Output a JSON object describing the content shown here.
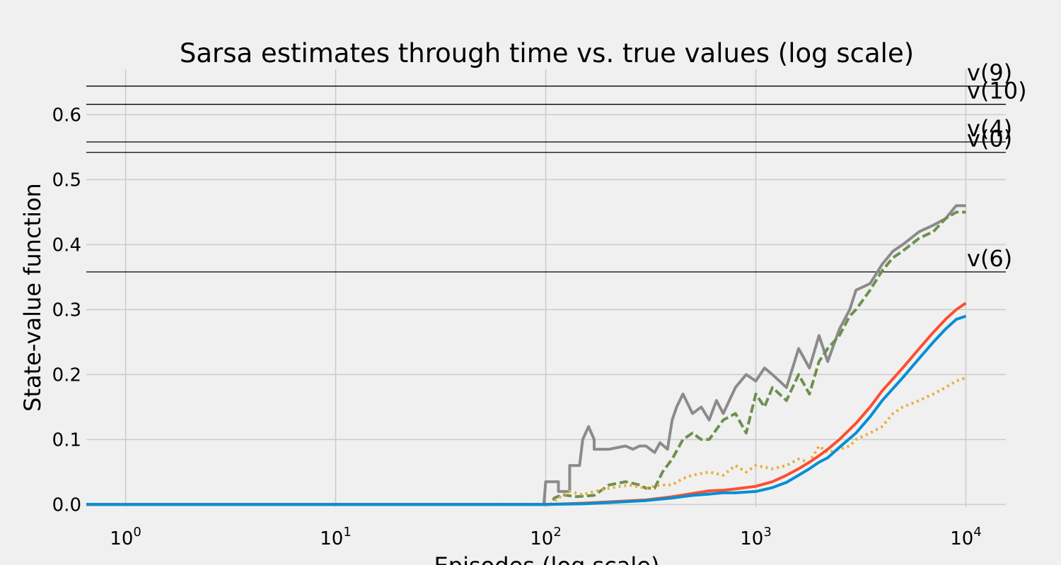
{
  "chart_data": {
    "type": "line",
    "title": "Sarsa estimates through time vs. true values (log scale)",
    "xlabel": "Episodes (log scale)",
    "ylabel": "State-value function",
    "xscale": "log",
    "xlim": [
      0.65,
      15500
    ],
    "ylim": [
      -0.004,
      0.67
    ],
    "grid": true,
    "legend": "none",
    "colors": [
      "#8b8b8b",
      "#6d904f",
      "#fc4f30",
      "#008fd5",
      "#e5ae38"
    ],
    "x_ticks": [
      {
        "value": 1,
        "base": "10",
        "exp": "0"
      },
      {
        "value": 10,
        "base": "10",
        "exp": "1"
      },
      {
        "value": 100,
        "base": "10",
        "exp": "2"
      },
      {
        "value": 1000,
        "base": "10",
        "exp": "3"
      },
      {
        "value": 10000,
        "base": "10",
        "exp": "4"
      }
    ],
    "y_ticks": [
      {
        "value": 0.0,
        "label": "0.0"
      },
      {
        "value": 0.1,
        "label": "0.1"
      },
      {
        "value": 0.2,
        "label": "0.2"
      },
      {
        "value": 0.3,
        "label": "0.3"
      },
      {
        "value": 0.4,
        "label": "0.4"
      },
      {
        "value": 0.5,
        "label": "0.5"
      },
      {
        "value": 0.6,
        "label": "0.6"
      }
    ],
    "true_values": [
      {
        "label": "v(9)",
        "value": 0.644
      },
      {
        "label": "v(10)",
        "value": 0.616
      },
      {
        "label": "v(4)",
        "value": 0.558
      },
      {
        "label": "v(0)",
        "value": 0.542
      },
      {
        "label": "v(6)",
        "value": 0.358
      }
    ],
    "series": [
      {
        "color": "#8b8b8b",
        "style": "solid",
        "x": [
          0.65,
          98,
          100,
          115,
          115,
          130,
          130,
          145,
          150,
          160,
          170,
          170,
          200,
          240,
          260,
          280,
          300,
          330,
          350,
          380,
          400,
          420,
          450,
          500,
          550,
          600,
          650,
          700,
          800,
          900,
          1000,
          1100,
          1200,
          1400,
          1600,
          1800,
          2000,
          2200,
          2500,
          2800,
          3000,
          3500,
          4000,
          4500,
          5000,
          6000,
          7000,
          8000,
          9000,
          10000
        ],
        "y": [
          0,
          0,
          0.035,
          0.035,
          0.02,
          0.02,
          0.06,
          0.06,
          0.1,
          0.12,
          0.1,
          0.085,
          0.085,
          0.09,
          0.085,
          0.09,
          0.09,
          0.08,
          0.095,
          0.085,
          0.13,
          0.15,
          0.17,
          0.14,
          0.15,
          0.13,
          0.16,
          0.14,
          0.18,
          0.2,
          0.19,
          0.21,
          0.2,
          0.18,
          0.24,
          0.21,
          0.26,
          0.22,
          0.27,
          0.3,
          0.33,
          0.34,
          0.37,
          0.39,
          0.4,
          0.42,
          0.43,
          0.44,
          0.46,
          0.46
        ]
      },
      {
        "color": "#6d904f",
        "style": "dashed",
        "x": [
          0.65,
          105,
          110,
          120,
          140,
          170,
          200,
          240,
          280,
          300,
          330,
          360,
          400,
          450,
          500,
          550,
          600,
          700,
          800,
          900,
          1000,
          1100,
          1200,
          1400,
          1600,
          1800,
          2000,
          2200,
          2500,
          2800,
          3000,
          3500,
          4000,
          4500,
          5000,
          6000,
          7000,
          8000,
          9000,
          10000
        ],
        "y": [
          0,
          0,
          0.01,
          0.015,
          0.012,
          0.014,
          0.03,
          0.035,
          0.03,
          0.025,
          0.025,
          0.05,
          0.07,
          0.1,
          0.11,
          0.1,
          0.1,
          0.13,
          0.14,
          0.11,
          0.17,
          0.15,
          0.18,
          0.16,
          0.2,
          0.17,
          0.22,
          0.24,
          0.26,
          0.29,
          0.3,
          0.33,
          0.36,
          0.38,
          0.39,
          0.41,
          0.42,
          0.44,
          0.45,
          0.45
        ]
      },
      {
        "color": "#e5ae38",
        "style": "dotted",
        "x": [
          0.65,
          105,
          115,
          130,
          150,
          170,
          200,
          250,
          300,
          350,
          400,
          450,
          500,
          600,
          700,
          800,
          900,
          1000,
          1200,
          1400,
          1600,
          1800,
          2000,
          2200,
          2500,
          2800,
          3000,
          3500,
          4000,
          4500,
          5000,
          6000,
          7000,
          8000,
          9000,
          10000
        ],
        "y": [
          0,
          0,
          0.01,
          0.02,
          0.015,
          0.02,
          0.025,
          0.03,
          0.025,
          0.03,
          0.03,
          0.04,
          0.045,
          0.05,
          0.045,
          0.06,
          0.05,
          0.06,
          0.055,
          0.06,
          0.07,
          0.065,
          0.09,
          0.08,
          0.085,
          0.09,
          0.1,
          0.11,
          0.12,
          0.14,
          0.15,
          0.16,
          0.17,
          0.18,
          0.19,
          0.195
        ]
      },
      {
        "color": "#fc4f30",
        "style": "solid",
        "x": [
          0.65,
          100,
          150,
          200,
          300,
          400,
          500,
          600,
          700,
          800,
          1000,
          1200,
          1400,
          1600,
          1800,
          2000,
          2200,
          2500,
          3000,
          3500,
          4000,
          5000,
          6000,
          7000,
          8000,
          9000,
          10000
        ],
        "y": [
          0,
          0,
          0.002,
          0.004,
          0.007,
          0.012,
          0.017,
          0.021,
          0.022,
          0.024,
          0.028,
          0.035,
          0.045,
          0.055,
          0.065,
          0.075,
          0.085,
          0.1,
          0.125,
          0.15,
          0.175,
          0.21,
          0.24,
          0.265,
          0.285,
          0.3,
          0.31
        ]
      },
      {
        "color": "#008fd5",
        "style": "solid",
        "x": [
          0.65,
          100,
          150,
          200,
          300,
          400,
          500,
          600,
          700,
          800,
          1000,
          1200,
          1400,
          1600,
          1800,
          2000,
          2200,
          2500,
          3000,
          3500,
          4000,
          5000,
          6000,
          7000,
          8000,
          9000,
          10000
        ],
        "y": [
          0,
          0,
          0.001,
          0.003,
          0.006,
          0.01,
          0.014,
          0.016,
          0.018,
          0.018,
          0.02,
          0.026,
          0.034,
          0.045,
          0.055,
          0.065,
          0.072,
          0.088,
          0.11,
          0.135,
          0.16,
          0.195,
          0.225,
          0.25,
          0.27,
          0.285,
          0.29
        ]
      }
    ]
  }
}
